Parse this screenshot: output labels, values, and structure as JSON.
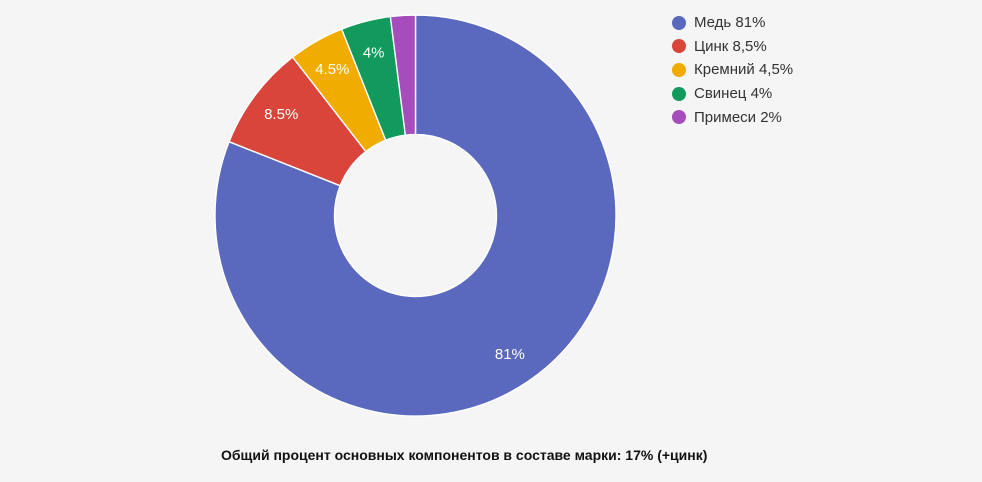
{
  "background": "#f5f5f5",
  "chart_data": {
    "type": "pie",
    "donut": true,
    "title": "",
    "unit": "%",
    "categories": [
      "Медь",
      "Цинк",
      "Кремний",
      "Свинец",
      "Примеси"
    ],
    "values": [
      81,
      8.5,
      4.5,
      4,
      2
    ],
    "colors": [
      "#5a68bd",
      "#d9453a",
      "#f0ac00",
      "#119a5c",
      "#a64cbc"
    ],
    "slice_labels": [
      "81%",
      "8.5%",
      "4.5%",
      "4%",
      ""
    ],
    "legend": {
      "position": "right",
      "entries": [
        "Медь 81%",
        "Цинк 8,5%",
        "Кремний 4,5%",
        "Свинец 4%",
        "Примеси 2%"
      ]
    },
    "start_angle_deg": 0,
    "direction": "clockwise",
    "slice_border_color": "#ffffff",
    "slice_label_color": "#ffffff"
  },
  "caption": {
    "text": "Общий процент основных компонентов в составе марки: 17% (+цинк)"
  }
}
